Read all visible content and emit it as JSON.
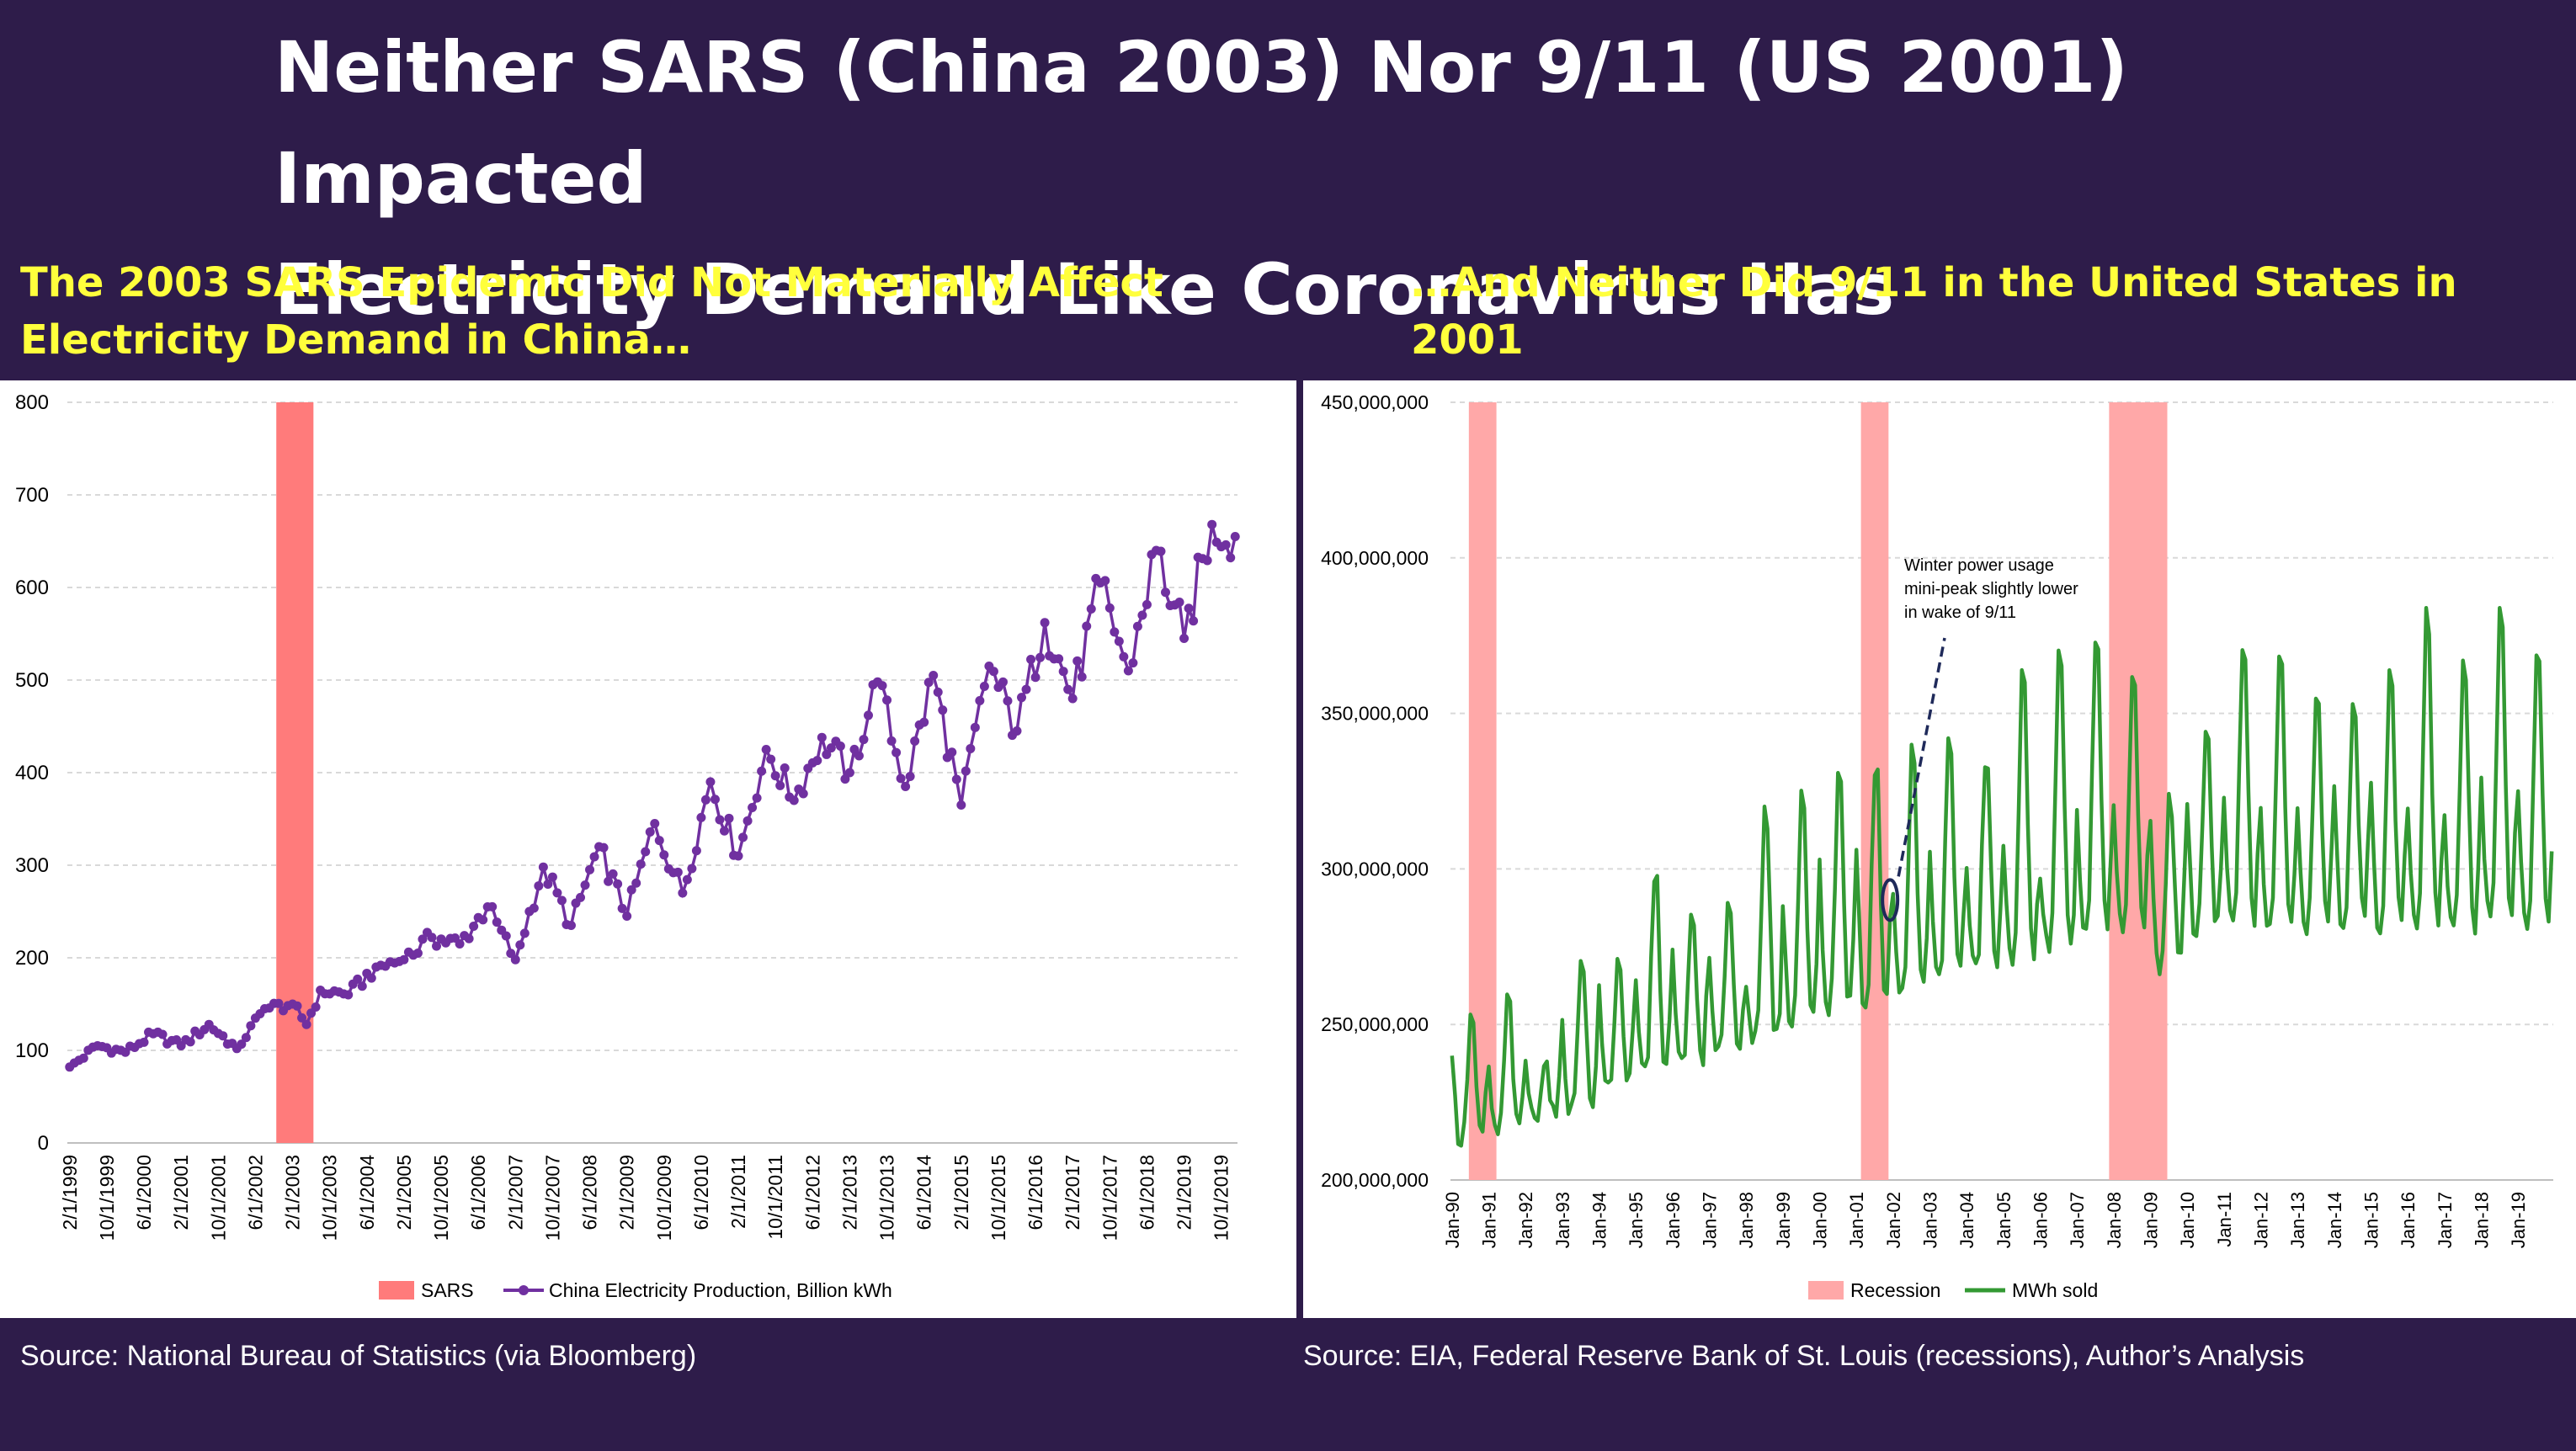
{
  "header": {
    "title_line1": "Neither SARS (China 2003) Nor 9/11 (US 2001) Impacted",
    "title_line2": "Electricity Demand Like Coronavirus Has"
  },
  "left_panel": {
    "subtitle_line1": "The 2003 SARS Epidemic Did Not Materially Affect",
    "subtitle_line2": "Electricity Demand in China…",
    "source": "Source: National Bureau of Statistics (via Bloomberg)"
  },
  "right_panel": {
    "subtitle": "…And Neither Did 9/11 in the United States in 2001",
    "source": "Source: EIA, Federal Reserve Bank of St. Louis (recessions), Author’s Analysis"
  },
  "colors": {
    "background": "#2e1c4a",
    "title": "#ffffff",
    "subtitle": "#ffff3c",
    "sars_band": "#ff7b7b",
    "china_line": "#7030a0",
    "recession_band": "#ffa8a8",
    "us_line": "#339933",
    "annotation": "#1f2a5a"
  },
  "chart_data": [
    {
      "type": "line",
      "x_start": "1999-02",
      "x_end": "2020-01",
      "x_frequency": "monthly",
      "ylim": [
        0,
        800
      ],
      "y_ticks": [
        0,
        100,
        200,
        300,
        400,
        500,
        600,
        700,
        800
      ],
      "x_tick_labels": [
        "2/1/1999",
        "10/1/1999",
        "6/1/2000",
        "2/1/2001",
        "10/1/2001",
        "6/1/2002",
        "2/1/2003",
        "10/1/2003",
        "6/1/2004",
        "2/1/2005",
        "10/1/2005",
        "6/1/2006",
        "2/1/2007",
        "10/1/2007",
        "6/1/2008",
        "2/1/2009",
        "10/1/2009",
        "6/1/2010",
        "2/1/2011",
        "10/1/2011",
        "6/1/2012",
        "2/1/2013",
        "10/1/2013",
        "6/1/2014",
        "2/1/2015",
        "10/1/2015",
        "6/1/2016",
        "2/1/2017",
        "10/1/2017",
        "6/1/2018",
        "2/1/2019",
        "10/1/2019"
      ],
      "grid": true,
      "legend_position": "bottom",
      "bands": [
        {
          "name": "SARS",
          "from": "2002-11",
          "to": "2003-06"
        }
      ],
      "series": [
        {
          "name": "China Electricity Production, Billion kWh",
          "anchors": [
            [
              "1999-02",
              82
            ],
            [
              "1999-08",
              105
            ],
            [
              "2000-02",
              98
            ],
            [
              "2000-08",
              118
            ],
            [
              "2001-02",
              105
            ],
            [
              "2001-08",
              128
            ],
            [
              "2002-02",
              102
            ],
            [
              "2002-08",
              145
            ],
            [
              "2003-02",
              150
            ],
            [
              "2003-05",
              128
            ],
            [
              "2003-08",
              165
            ],
            [
              "2004-02",
              160
            ],
            [
              "2004-08",
              190
            ],
            [
              "2005-02",
              198
            ],
            [
              "2005-08",
              222
            ],
            [
              "2006-02",
              215
            ],
            [
              "2006-08",
              255
            ],
            [
              "2007-02",
              198
            ],
            [
              "2007-08",
              298
            ],
            [
              "2008-02",
              235
            ],
            [
              "2008-08",
              320
            ],
            [
              "2009-02",
              245
            ],
            [
              "2009-08",
              345
            ],
            [
              "2010-02",
              270
            ],
            [
              "2010-08",
              390
            ],
            [
              "2011-02",
              310
            ],
            [
              "2011-08",
              425
            ],
            [
              "2012-02",
              370
            ],
            [
              "2012-08",
              438
            ],
            [
              "2013-02",
              400
            ],
            [
              "2013-08",
              498
            ],
            [
              "2014-02",
              385
            ],
            [
              "2014-08",
              505
            ],
            [
              "2015-02",
              365
            ],
            [
              "2015-08",
              515
            ],
            [
              "2016-02",
              445
            ],
            [
              "2016-08",
              562
            ],
            [
              "2017-02",
              480
            ],
            [
              "2017-08",
              605
            ],
            [
              "2018-02",
              510
            ],
            [
              "2018-08",
              640
            ],
            [
              "2019-02",
              545
            ],
            [
              "2019-08",
              668
            ],
            [
              "2020-01",
              655
            ]
          ]
        }
      ]
    },
    {
      "type": "line",
      "x_start": "1990-01",
      "x_end": "2019-12",
      "x_frequency": "monthly",
      "ylim": [
        200000000,
        450000000
      ],
      "y_ticks": [
        "200,000,000",
        "250,000,000",
        "300,000,000",
        "350,000,000",
        "400,000,000",
        "450,000,000"
      ],
      "x_tick_labels": [
        "Jan-90",
        "Jan-91",
        "Jan-92",
        "Jan-93",
        "Jan-94",
        "Jan-95",
        "Jan-96",
        "Jan-97",
        "Jan-98",
        "Jan-99",
        "Jan-00",
        "Jan-01",
        "Jan-02",
        "Jan-03",
        "Jan-04",
        "Jan-05",
        "Jan-06",
        "Jan-07",
        "Jan-08",
        "Jan-09",
        "Jan-10",
        "Jan-11",
        "Jan-12",
        "Jan-13",
        "Jan-14",
        "Jan-15",
        "Jan-16",
        "Jan-17",
        "Jan-18",
        "Jan-19"
      ],
      "grid": true,
      "legend_position": "bottom",
      "bands": [
        {
          "name": "Recession",
          "from": "1990-07",
          "to": "1991-03"
        },
        {
          "name": "Recession",
          "from": "2001-03",
          "to": "2001-11"
        },
        {
          "name": "Recession",
          "from": "2007-12",
          "to": "2009-06"
        }
      ],
      "annotation": {
        "text_line1": "Winter power usage",
        "text_line2": "mini-peak slightly lower",
        "text_line3": "in wake of 9/11",
        "target": [
          "2001-12",
          290000000
        ]
      },
      "series": [
        {
          "name": "MWh sold",
          "yearly_profile": {
            "note": "summer peak and winter values by year (MWh)",
            "years": [
              1990,
              1991,
              1992,
              1993,
              1994,
              1995,
              1996,
              1997,
              1998,
              1999,
              2000,
              2001,
              2002,
              2003,
              2004,
              2005,
              2006,
              2007,
              2008,
              2009,
              2010,
              2011,
              2012,
              2013,
              2014,
              2015,
              2016,
              2017,
              2018,
              2019
            ],
            "base": [
              212000000,
              215000000,
              220000000,
              222000000,
              230000000,
              235000000,
              238000000,
              240000000,
              245000000,
              250000000,
              255000000,
              257000000,
              260000000,
              265000000,
              268000000,
              272000000,
              275000000,
              280000000,
              282000000,
              268000000,
              280000000,
              282000000,
              280000000,
              282000000,
              283000000,
              282000000,
              282000000,
              280000000,
              285000000,
              282000000
            ],
            "summer_peak": [
              252000000,
              258000000,
              238000000,
              272000000,
              270000000,
              298000000,
              283000000,
              290000000,
              318000000,
              325000000,
              330000000,
              333000000,
              338000000,
              342000000,
              335000000,
              362000000,
              368000000,
              373000000,
              360000000,
              322000000,
              345000000,
              372000000,
              371000000,
              357000000,
              351000000,
              362000000,
              381000000,
              368000000,
              381000000,
              370000000
            ],
            "winter_peak": [
              241000000,
              235000000,
              239000000,
              252000000,
              260000000,
              262000000,
              272000000,
              270000000,
              265000000,
              290000000,
              300000000,
              307000000,
              290000000,
              305000000,
              300000000,
              305000000,
              298000000,
              318000000,
              320000000,
              318000000,
              320000000,
              322000000,
              318000000,
              322000000,
              328000000,
              325000000,
              320000000,
              316000000,
              330000000,
              328000000
            ]
          }
        }
      ]
    }
  ]
}
